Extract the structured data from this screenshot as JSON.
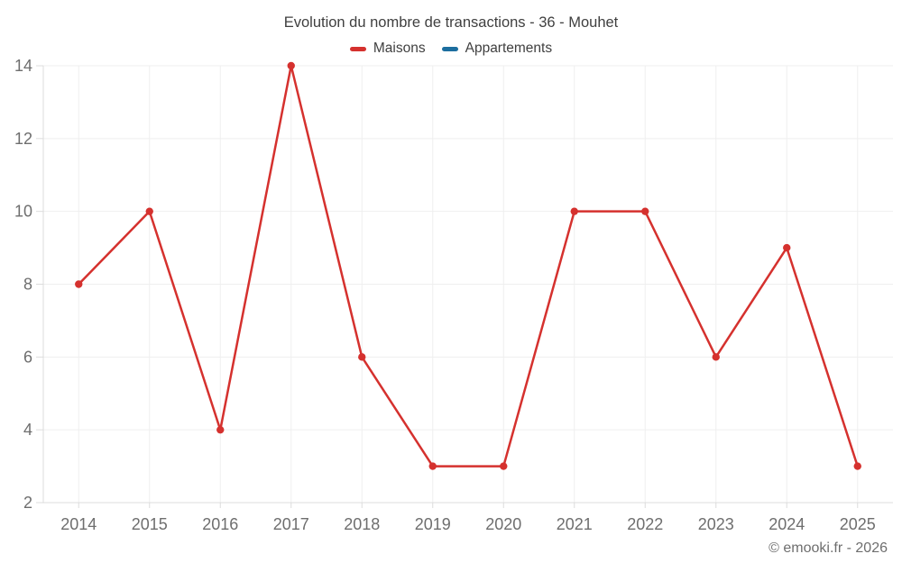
{
  "chart_data": {
    "type": "line",
    "title": "Evolution du nombre de transactions - 36 - Mouhet",
    "categories": [
      "2014",
      "2015",
      "2016",
      "2017",
      "2018",
      "2019",
      "2020",
      "2021",
      "2022",
      "2023",
      "2024",
      "2025"
    ],
    "series": [
      {
        "name": "Maisons",
        "color": "#d5312e",
        "values": [
          8,
          10,
          4,
          14,
          6,
          3,
          3,
          10,
          10,
          6,
          9,
          3
        ]
      },
      {
        "name": "Appartements",
        "color": "#1c6e9f",
        "values": []
      }
    ],
    "xlabel": "",
    "ylabel": "",
    "ylim": [
      2,
      14
    ],
    "yticks": [
      2,
      4,
      6,
      8,
      10,
      12,
      14
    ],
    "grid": true,
    "legend_position": "top",
    "marker": "circle"
  },
  "footer": {
    "copyright": "© emooki.fr - 2026"
  }
}
